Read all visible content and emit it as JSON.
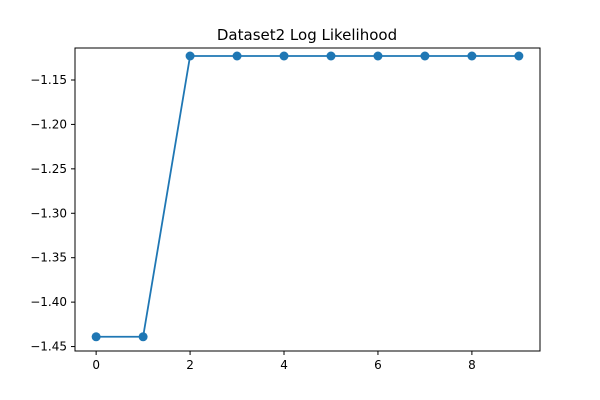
{
  "chart_data": {
    "type": "line",
    "title": "Dataset2 Log Likelihood",
    "xlabel": "",
    "ylabel": "",
    "xlim": [
      -0.45,
      9.45
    ],
    "ylim": [
      -1.455,
      -1.114
    ],
    "x_ticks": [
      0,
      2,
      4,
      6,
      8
    ],
    "x_tick_labels": [
      "0",
      "2",
      "4",
      "6",
      "8"
    ],
    "y_ticks": [
      -1.45,
      -1.4,
      -1.35,
      -1.3,
      -1.25,
      -1.2,
      -1.15
    ],
    "y_tick_labels": [
      "−1.45",
      "−1.40",
      "−1.35",
      "−1.30",
      "−1.25",
      "−1.20",
      "−1.15"
    ],
    "grid": false,
    "legend": false,
    "series": [
      {
        "x": [
          0,
          1,
          2,
          3,
          4,
          5,
          6,
          7,
          8,
          9
        ],
        "values": [
          -1.439,
          -1.439,
          -1.123,
          -1.123,
          -1.123,
          -1.123,
          -1.123,
          -1.123,
          -1.123,
          -1.123
        ],
        "color": "#1f77b4",
        "marker": "circle"
      }
    ]
  }
}
